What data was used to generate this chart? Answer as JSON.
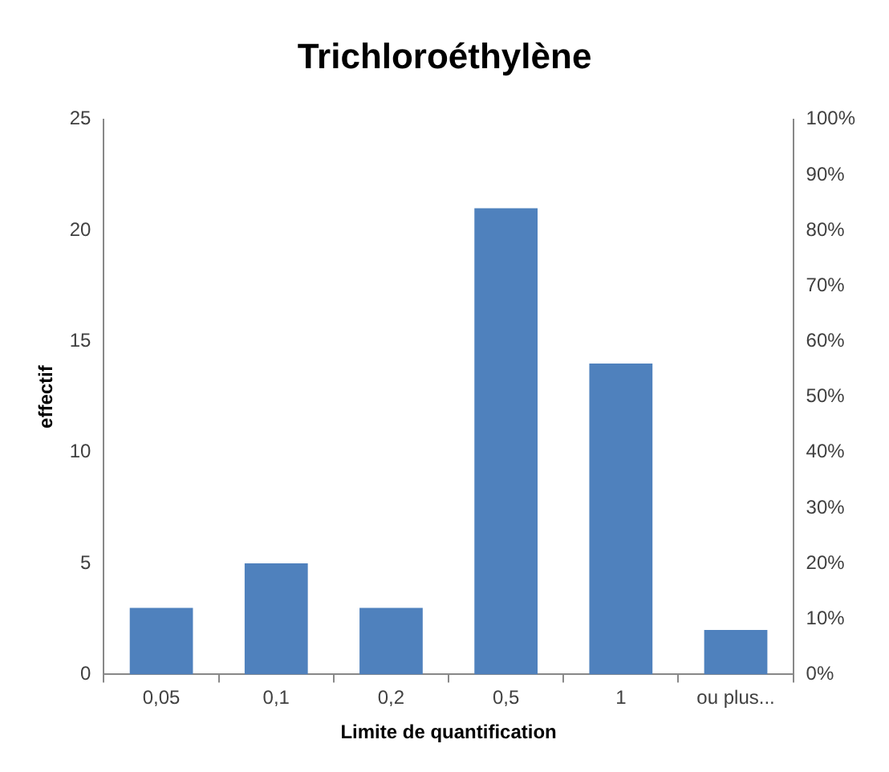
{
  "chart_data": {
    "type": "bar",
    "title": "Trichloroéthylène",
    "xlabel": "Limite de quantification",
    "ylabel": "effectif",
    "categories": [
      "0,05",
      "0,1",
      "0,2",
      "0,5",
      "1",
      "ou plus..."
    ],
    "series": [
      {
        "color": "#4f81bd",
        "values": [
          3,
          5,
          3,
          21,
          14,
          2
        ]
      }
    ],
    "ylim": [
      0,
      25
    ],
    "yticks": [
      0,
      5,
      10,
      15,
      20,
      25
    ],
    "y2lim": [
      0,
      100
    ],
    "y2ticks": [
      {
        "value": 0,
        "label": "0%"
      },
      {
        "value": 10,
        "label": "10%"
      },
      {
        "value": 20,
        "label": "20%"
      },
      {
        "value": 30,
        "label": "30%"
      },
      {
        "value": 40,
        "label": "40%"
      },
      {
        "value": 50,
        "label": "50%"
      },
      {
        "value": 60,
        "label": "60%"
      },
      {
        "value": 70,
        "label": "70%"
      },
      {
        "value": 80,
        "label": "80%"
      },
      {
        "value": 90,
        "label": "90%"
      },
      {
        "value": 100,
        "label": "100%"
      }
    ],
    "grid": false,
    "legend": false
  }
}
